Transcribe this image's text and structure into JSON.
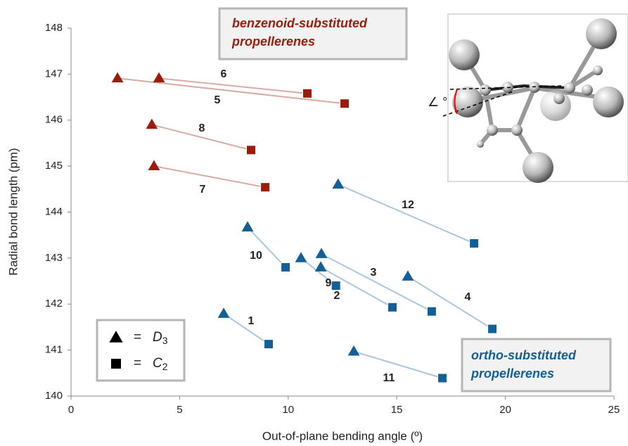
{
  "chart_data": {
    "type": "scatter",
    "xlabel": "Out-of-plane bending angle (º)",
    "ylabel": "Radial bond length (pm)",
    "xlim": [
      0,
      25
    ],
    "xticks": [
      0,
      5,
      10,
      15,
      20,
      25
    ],
    "ylim": [
      140,
      148
    ],
    "yticks": [
      140,
      141,
      142,
      143,
      144,
      145,
      146,
      147,
      148
    ],
    "groups": [
      {
        "name": [
          "benzenoid-substituted",
          "propellerenes"
        ],
        "color": "#9b1b0c",
        "line_color": "#d8aaa4",
        "pairs": [
          {
            "label": "6",
            "x": [
              4.05,
              10.88
            ],
            "y": [
              146.91,
              146.58
            ]
          },
          {
            "label": "5",
            "x": [
              2.14,
              12.6
            ],
            "y": [
              146.91,
              146.36
            ]
          },
          {
            "label": "8",
            "x": [
              3.72,
              8.29
            ],
            "y": [
              145.9,
              145.35
            ]
          },
          {
            "label": "7",
            "x": [
              3.82,
              8.94
            ],
            "y": [
              145.0,
              144.54
            ]
          }
        ]
      },
      {
        "name": [
          "ortho-substituted",
          "propellerenes"
        ],
        "color": "#135f96",
        "line_color": "#a9c6dd",
        "pairs": [
          {
            "label": "12",
            "x": [
              12.3,
              18.56
            ],
            "y": [
              144.6,
              143.32
            ]
          },
          {
            "label": "10",
            "x": [
              8.13,
              9.88
            ],
            "y": [
              143.67,
              142.8
            ]
          },
          {
            "label": "3",
            "x": [
              11.53,
              16.61
            ],
            "y": [
              143.09,
              141.84
            ]
          },
          {
            "label": "9",
            "x": [
              10.59,
              12.2
            ],
            "y": [
              143.0,
              142.4
            ]
          },
          {
            "label": "2",
            "x": [
              11.5,
              14.8
            ],
            "y": [
              142.8,
              141.93
            ]
          },
          {
            "label": "4",
            "x": [
              15.51,
              19.4
            ],
            "y": [
              142.6,
              141.46
            ]
          },
          {
            "label": "1",
            "x": [
              7.03,
              9.1
            ],
            "y": [
              141.79,
              141.13
            ]
          },
          {
            "label": "11",
            "x": [
              13.02,
              17.1
            ],
            "y": [
              140.97,
              140.39
            ]
          }
        ]
      }
    ],
    "legend": [
      {
        "shape": "triangle",
        "eq": "=",
        "symbol": "D",
        "sub": "3"
      },
      {
        "shape": "square",
        "eq": "=",
        "symbol": "C",
        "sub": "2"
      }
    ],
    "inset_label": "∠ °"
  }
}
